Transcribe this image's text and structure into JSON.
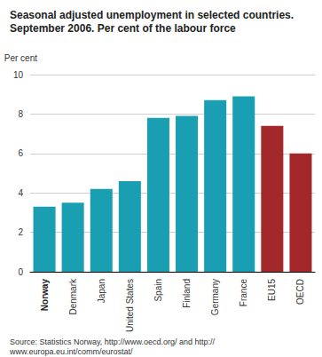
{
  "chart_data": {
    "type": "bar",
    "title": "Seasonal adjusted unemployment in selected countries. September 2006. Per cent of the labour force",
    "ylabel": "Per cent",
    "source": "Source: Statistics Norway, http://www.oecd.org/ and http://www.europa.eu.int/comm/eurostat/",
    "categories": [
      "Norway",
      "Denmark",
      "Japan",
      "United States",
      "Spain",
      "Finland",
      "Germany",
      "France",
      "EU15",
      "OECD"
    ],
    "values": [
      3.3,
      3.5,
      4.2,
      4.6,
      7.8,
      7.9,
      8.7,
      8.9,
      7.4,
      6.0
    ],
    "colors": [
      "#1a9fb2",
      "#1a9fb2",
      "#1a9fb2",
      "#1a9fb2",
      "#1a9fb2",
      "#1a9fb2",
      "#1a9fb2",
      "#1a9fb2",
      "#a3282a",
      "#a3282a"
    ],
    "ylim": [
      0,
      10
    ],
    "yticks": [
      0,
      2,
      4,
      6,
      8,
      10
    ],
    "grid": true
  }
}
